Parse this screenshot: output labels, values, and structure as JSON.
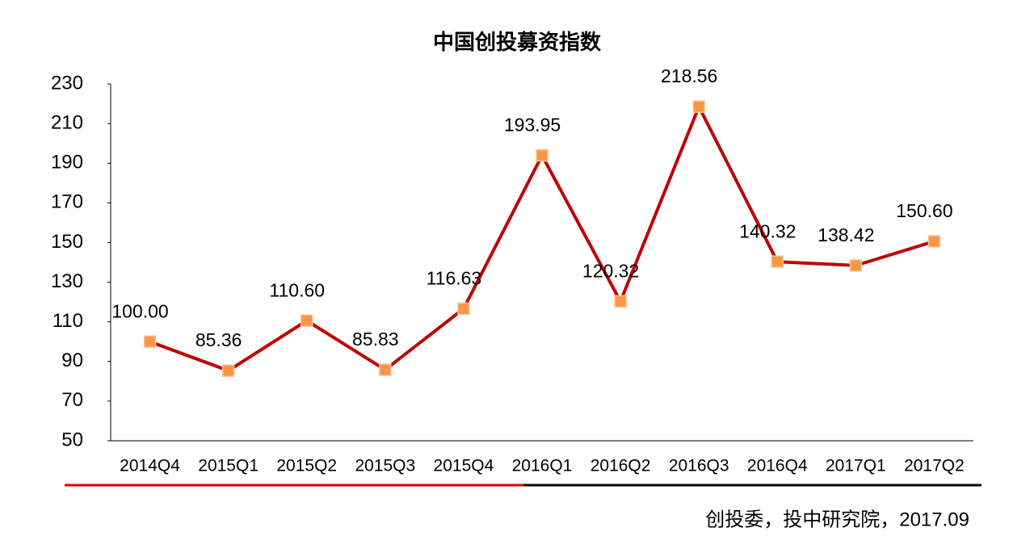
{
  "chart_data": {
    "type": "line",
    "title": "中国创投募资指数",
    "categories": [
      "2014Q4",
      "2015Q1",
      "2015Q2",
      "2015Q3",
      "2015Q4",
      "2016Q1",
      "2016Q2",
      "2016Q3",
      "2016Q4",
      "2017Q1",
      "2017Q2"
    ],
    "series": [
      {
        "name": "中国创投募资指数",
        "color": "#c00000",
        "marker_color": "#f79646",
        "values": [
          100,
          85.36,
          110.6,
          85.83,
          116.63,
          193.95,
          120.32,
          218.56,
          140.32,
          138.42,
          150.6
        ],
        "value_labels": [
          "100.00",
          "85.36",
          "110.60",
          "85.83",
          "116.63",
          "193.95",
          "120.32",
          "218.56",
          "140.32",
          "138.42",
          "150.60"
        ]
      }
    ],
    "ylim": [
      50,
      230
    ],
    "yticks": [
      50,
      70,
      90,
      110,
      130,
      150,
      170,
      190,
      210,
      230
    ],
    "grid": false,
    "source": "创投委，投中研究院，2017.09"
  }
}
